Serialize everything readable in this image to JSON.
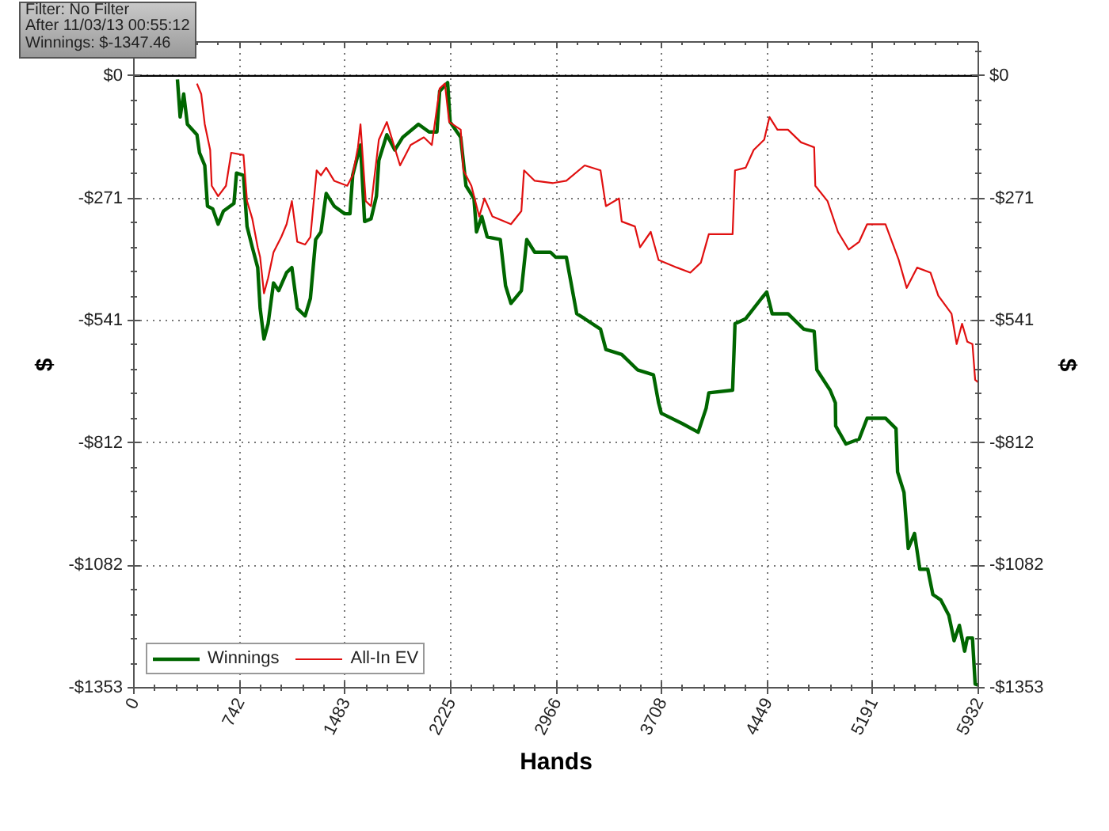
{
  "chart_data": {
    "type": "line",
    "xlabel": "Hands",
    "ylabel": "$",
    "y2label": "$",
    "annotations": [
      "Filter: No Filter",
      "After 11/03/13 00:55:12",
      "Winnings: $-1347.46"
    ],
    "xlim": [
      0,
      5932
    ],
    "xticks": [
      0,
      742,
      1483,
      2225,
      2966,
      3708,
      4449,
      5191,
      5932
    ],
    "ylim": [
      -1353,
      75
    ],
    "yticks": [
      {
        "value": -1353,
        "label": "-$1353"
      },
      {
        "value": -1082,
        "label": "-$1082"
      },
      {
        "value": -812,
        "label": "-$812"
      },
      {
        "value": -541,
        "label": "-$541"
      },
      {
        "value": -271,
        "label": "-$271"
      },
      {
        "value": 0,
        "label": "$0"
      }
    ],
    "y2lim": [
      -1353,
      75
    ],
    "y2ticks": [
      {
        "value": -1353,
        "label": "-$1353"
      },
      {
        "value": -1082,
        "label": "-$1082"
      },
      {
        "value": -812,
        "label": "-$812"
      },
      {
        "value": -541,
        "label": "-$541"
      },
      {
        "value": -271,
        "label": "-$271"
      },
      {
        "value": 0,
        "label": "$0"
      }
    ],
    "grid": true,
    "legend": "bottom left",
    "ref_lines": [
      {
        "axis": "y",
        "value": 0,
        "color": "#000000"
      }
    ],
    "series": [
      {
        "name": "Winnings",
        "color": "#006600",
        "x": [
          306,
          325,
          350,
          376,
          443,
          461,
          498,
          517,
          554,
          592,
          629,
          703,
          721,
          770,
          795,
          832,
          870,
          887,
          914,
          943,
          981,
          1017,
          1073,
          1110,
          1148,
          1203,
          1240,
          1277,
          1314,
          1351,
          1407,
          1481,
          1518,
          1537,
          1592,
          1621,
          1666,
          1704,
          1721,
          1777,
          1833,
          1888,
          1999,
          2074,
          2129,
          2148,
          2204,
          2222,
          2296,
          2333,
          2389,
          2407,
          2444,
          2482,
          2574,
          2611,
          2649,
          2722,
          2760,
          2816,
          2927,
          2963,
          3038,
          3111,
          3167,
          3278,
          3316,
          3427,
          3538,
          3650,
          3686,
          3705,
          3853,
          3964,
          4020,
          4039,
          4206,
          4223,
          4298,
          4409,
          4446,
          4484,
          4595,
          4706,
          4779,
          4798,
          4891,
          4928,
          4930,
          5002,
          5095,
          5151,
          5280,
          5354,
          5365,
          5410,
          5440,
          5484,
          5521,
          5577,
          5613,
          5669,
          5725,
          5762,
          5799,
          5836,
          5855,
          5891,
          5910,
          5932
        ],
        "values": [
          -8,
          -91,
          -40,
          -107,
          -130,
          -170,
          -198,
          -288,
          -294,
          -328,
          -299,
          -282,
          -215,
          -220,
          -333,
          -379,
          -424,
          -514,
          -582,
          -548,
          -458,
          -475,
          -435,
          -424,
          -514,
          -531,
          -492,
          -362,
          -345,
          -260,
          -288,
          -305,
          -305,
          -220,
          -153,
          -322,
          -316,
          -266,
          -187,
          -130,
          -164,
          -136,
          -107,
          -124,
          -124,
          -34,
          -15,
          -102,
          -136,
          -243,
          -271,
          -345,
          -311,
          -356,
          -362,
          -464,
          -503,
          -475,
          -362,
          -390,
          -390,
          -401,
          -401,
          -526,
          -537,
          -560,
          -605,
          -616,
          -650,
          -661,
          -723,
          -746,
          -769,
          -788,
          -735,
          -701,
          -695,
          -548,
          -537,
          -492,
          -478,
          -526,
          -526,
          -560,
          -565,
          -650,
          -695,
          -723,
          -774,
          -814,
          -803,
          -757,
          -757,
          -780,
          -876,
          -921,
          -1045,
          -1012,
          -1091,
          -1091,
          -1147,
          -1159,
          -1193,
          -1249,
          -1215,
          -1272,
          -1243,
          -1243,
          -1345,
          -1347
        ]
      },
      {
        "name": "All-In EV",
        "color": "#e01010",
        "x": [
          443,
          473,
          498,
          536,
          547,
          592,
          647,
          684,
          770,
          795,
          832,
          870,
          887,
          914,
          943,
          981,
          1036,
          1073,
          1110,
          1148,
          1203,
          1240,
          1284,
          1314,
          1351,
          1407,
          1499,
          1537,
          1574,
          1592,
          1629,
          1666,
          1721,
          1777,
          1870,
          1944,
          2037,
          2093,
          2148,
          2185,
          2215,
          2296,
          2315,
          2371,
          2426,
          2463,
          2519,
          2649,
          2722,
          2741,
          2816,
          2945,
          3038,
          3167,
          3278,
          3316,
          3408,
          3427,
          3520,
          3556,
          3631,
          3686,
          3816,
          3909,
          3983,
          4039,
          4206,
          4223,
          4298,
          4354,
          4428,
          4465,
          4521,
          4595,
          4687,
          4779,
          4787,
          4873,
          4946,
          5021,
          5095,
          5151,
          5280,
          5373,
          5429,
          5502,
          5596,
          5651,
          5744,
          5780,
          5818,
          5855,
          5891,
          5910,
          5932
        ],
        "values": [
          -17,
          -40,
          -107,
          -164,
          -243,
          -266,
          -243,
          -170,
          -175,
          -277,
          -316,
          -379,
          -401,
          -481,
          -447,
          -390,
          -356,
          -328,
          -277,
          -367,
          -373,
          -356,
          -209,
          -220,
          -203,
          -232,
          -243,
          -220,
          -158,
          -107,
          -277,
          -288,
          -141,
          -102,
          -198,
          -153,
          -136,
          -153,
          -28,
          -17,
          -102,
          -119,
          -209,
          -243,
          -311,
          -271,
          -311,
          -328,
          -299,
          -209,
          -232,
          -237,
          -232,
          -198,
          -209,
          -288,
          -271,
          -322,
          -333,
          -379,
          -345,
          -407,
          -424,
          -435,
          -413,
          -350,
          -350,
          -209,
          -203,
          -164,
          -141,
          -91,
          -119,
          -119,
          -147,
          -158,
          -243,
          -277,
          -345,
          -384,
          -367,
          -328,
          -328,
          -407,
          -469,
          -424,
          -435,
          -486,
          -526,
          -593,
          -548,
          -588,
          -593,
          -672,
          -678
        ]
      }
    ]
  }
}
